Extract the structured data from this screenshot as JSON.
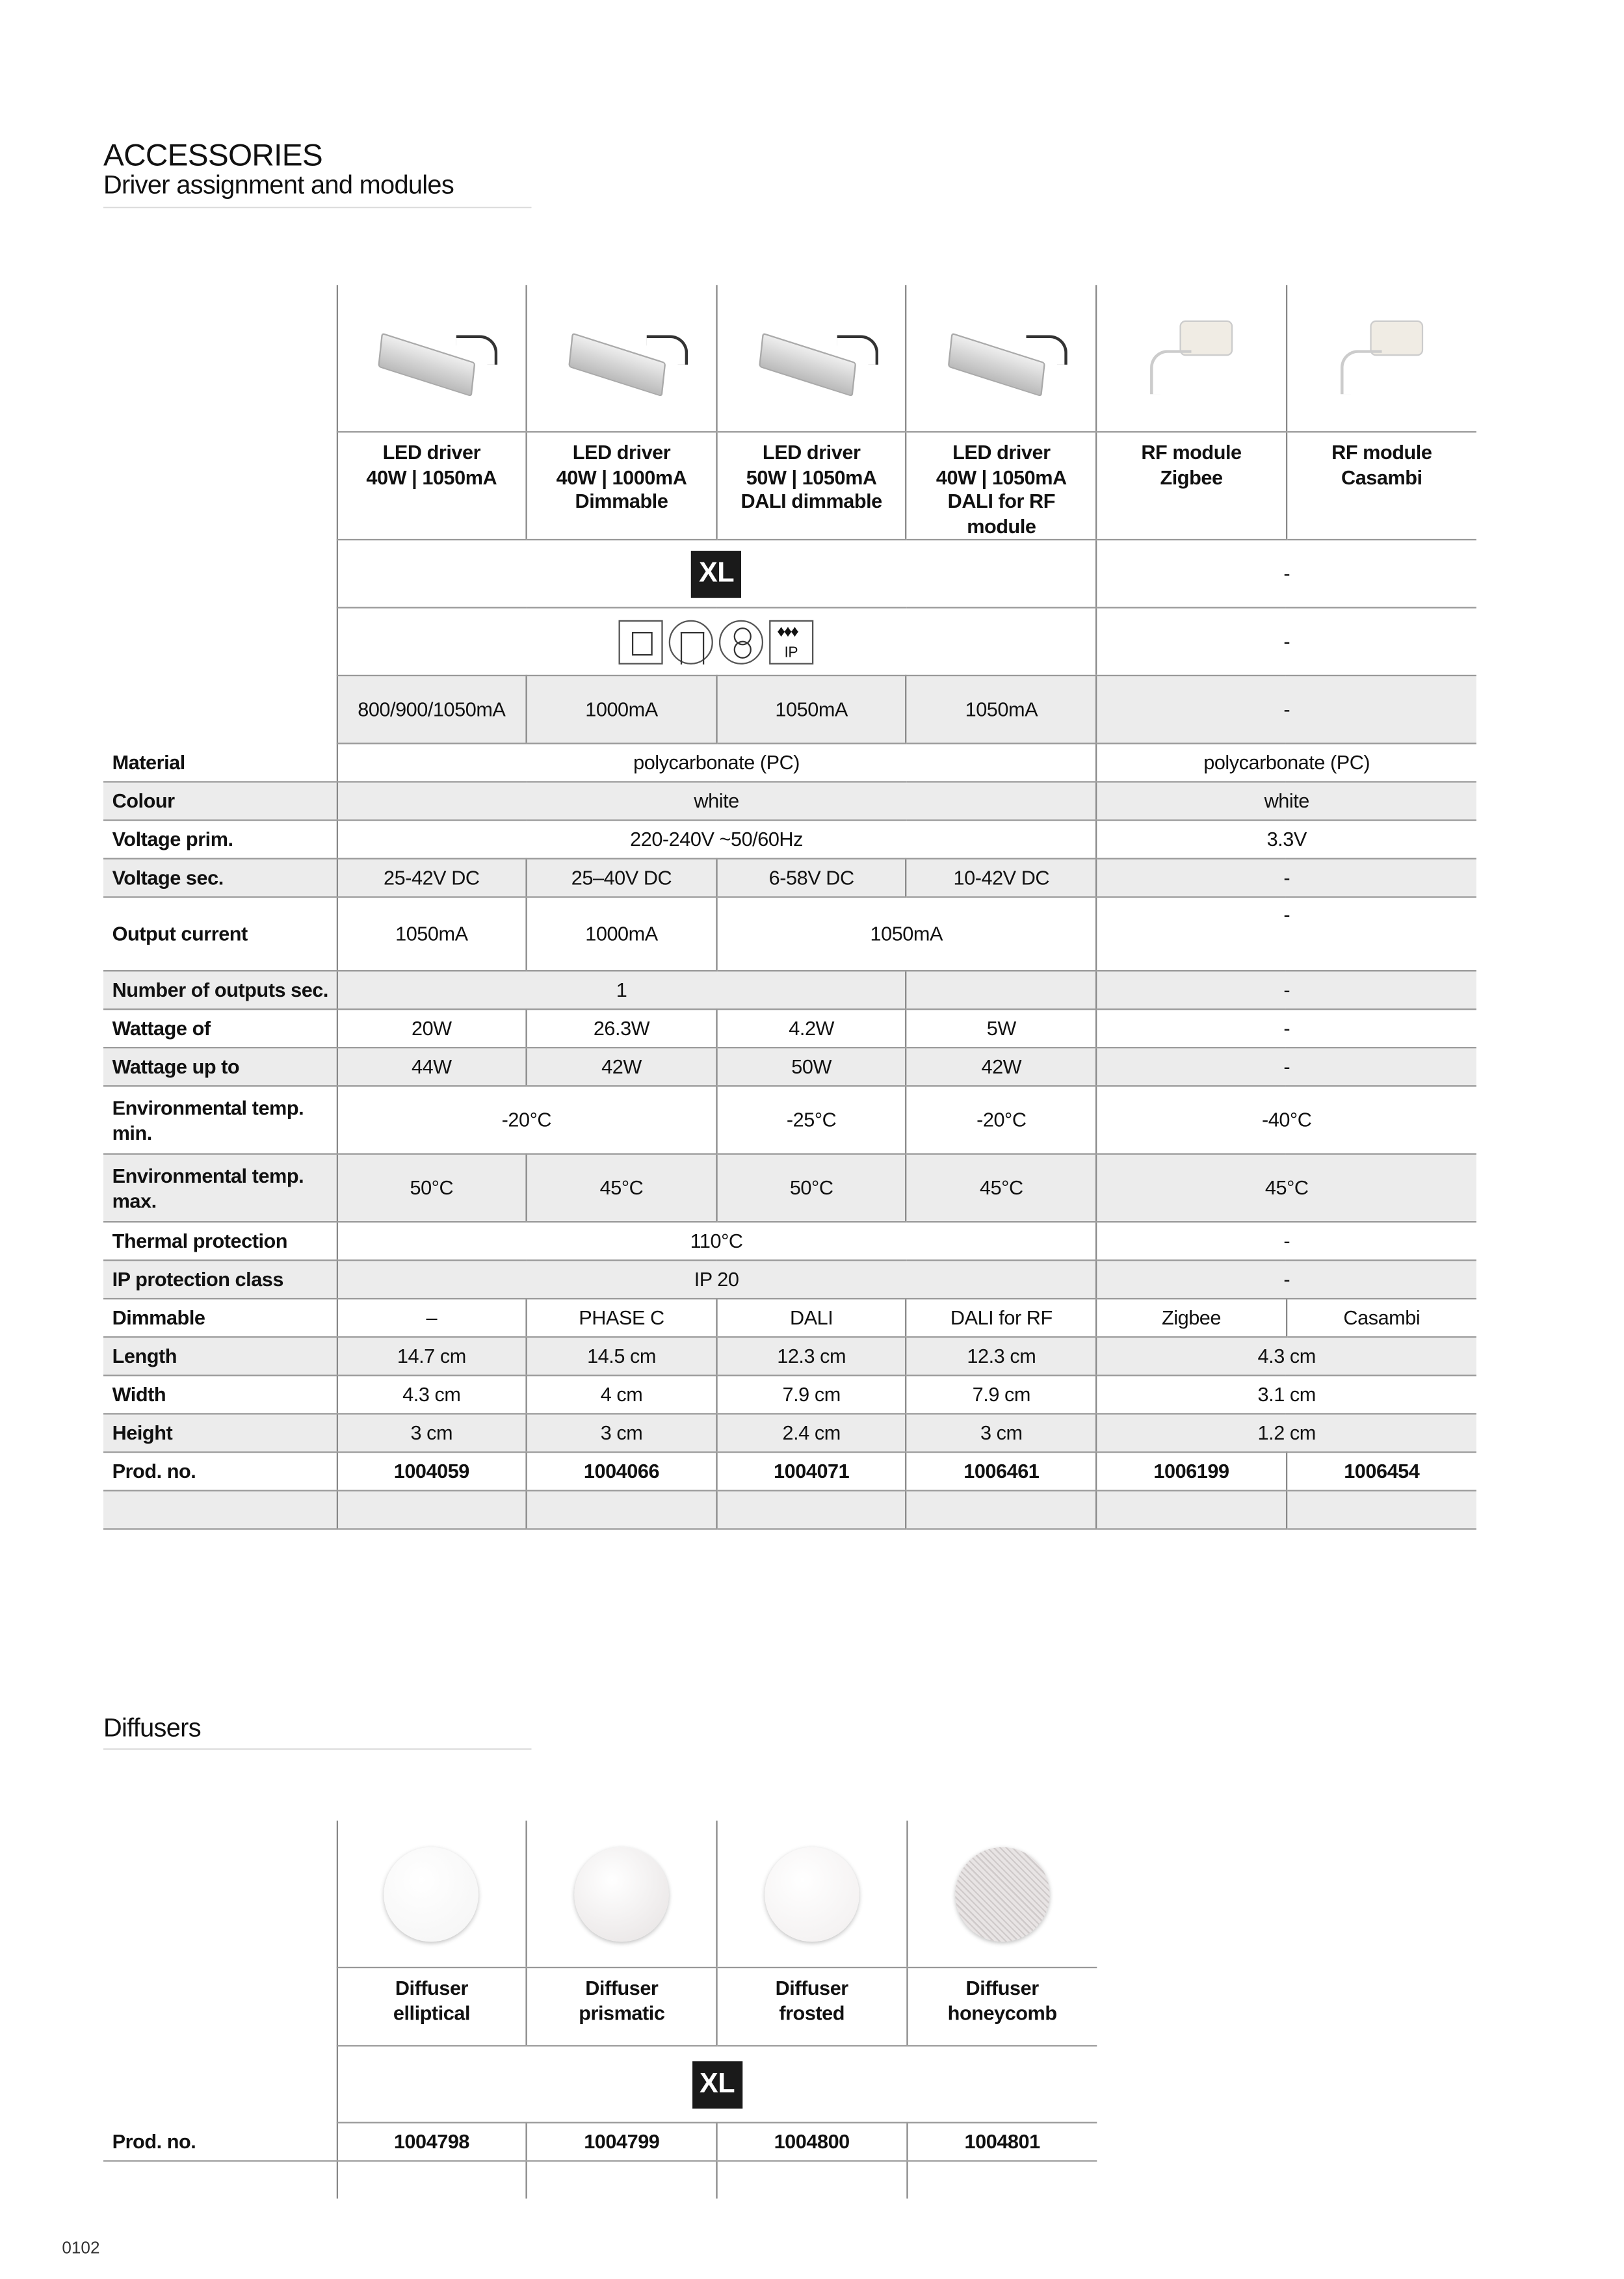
{
  "header": {
    "title": "ACCESSORIES",
    "subtitle": "Driver assignment and modules"
  },
  "drivers": {
    "products": [
      {
        "name1": "LED driver",
        "name2": "40W | 1050mA",
        "name3": "",
        "image": "led-driver"
      },
      {
        "name1": "LED driver",
        "name2": "40W | 1000mA",
        "name3": "Dimmable",
        "image": "led-driver"
      },
      {
        "name1": "LED driver",
        "name2": "50W | 1050mA",
        "name3": "DALI dimmable",
        "image": "led-driver"
      },
      {
        "name1": "LED driver",
        "name2": "40W | 1050mA",
        "name3": "DALI for RF module",
        "image": "led-driver"
      },
      {
        "name1": "RF module",
        "name2": "Zigbee",
        "name3": "",
        "image": "rf-module"
      },
      {
        "name1": "RF module",
        "name2": "Casambi",
        "name3": "",
        "image": "rf-module"
      }
    ],
    "xl_badge": "XL",
    "dash": "-",
    "icon_names": [
      "protection-class-icon",
      "switch-mode-icon",
      "transformer-icon",
      "ip-drip-icon"
    ],
    "ip_label": "IP",
    "current_row": [
      {
        "t": "800/900/1050mA",
        "s": 1
      },
      {
        "t": "1000mA",
        "s": 1
      },
      {
        "t": "1050mA",
        "s": 1
      },
      {
        "t": "1050mA",
        "s": 1
      },
      {
        "t": "-",
        "s": 2
      }
    ],
    "rows": [
      {
        "label": "Material",
        "cells": [
          {
            "t": "polycarbonate (PC)",
            "s": 4
          },
          {
            "t": "polycarbonate (PC)",
            "s": 2
          }
        ]
      },
      {
        "label": "Colour",
        "cells": [
          {
            "t": "white",
            "s": 4
          },
          {
            "t": "white",
            "s": 2
          }
        ]
      },
      {
        "label": "Voltage prim.",
        "cells": [
          {
            "t": "220-240V ~50/60Hz",
            "s": 4
          },
          {
            "t": "3.3V",
            "s": 2
          }
        ]
      },
      {
        "label": "Voltage sec.",
        "cells": [
          {
            "t": "25-42V DC",
            "s": 1
          },
          {
            "t": "25–40V DC",
            "s": 1
          },
          {
            "t": "6-58V DC",
            "s": 1
          },
          {
            "t": "10-42V DC",
            "s": 1
          },
          {
            "t": "-",
            "s": 2
          }
        ]
      },
      {
        "label": "Output current",
        "tall": true,
        "cells": [
          {
            "t": "1050mA",
            "s": 1
          },
          {
            "t": "1000mA",
            "s": 1
          },
          {
            "t": "1050mA",
            "s": 2
          },
          {
            "t": "-",
            "s": 2,
            "top": true
          }
        ]
      },
      {
        "label": "Number of outputs sec.",
        "cells": [
          {
            "t": "1",
            "s": 3
          },
          {
            "t": "",
            "s": 1
          },
          {
            "t": "-",
            "s": 2
          }
        ]
      },
      {
        "label": "Wattage of",
        "cells": [
          {
            "t": "20W",
            "s": 1
          },
          {
            "t": "26.3W",
            "s": 1
          },
          {
            "t": "4.2W",
            "s": 1
          },
          {
            "t": "5W",
            "s": 1
          },
          {
            "t": "-",
            "s": 2
          }
        ]
      },
      {
        "label": "Wattage up to",
        "cells": [
          {
            "t": "44W",
            "s": 1
          },
          {
            "t": "42W",
            "s": 1
          },
          {
            "t": "50W",
            "s": 1
          },
          {
            "t": "42W",
            "s": 1
          },
          {
            "t": "-",
            "s": 2
          }
        ]
      },
      {
        "label": "Environmental temp. min.",
        "tall": true,
        "cells": [
          {
            "t": "-20°C",
            "s": 2
          },
          {
            "t": "-25°C",
            "s": 1
          },
          {
            "t": "-20°C",
            "s": 1
          },
          {
            "t": "-40°C",
            "s": 2
          }
        ]
      },
      {
        "label": "Environmental temp. max.",
        "tall": true,
        "cells": [
          {
            "t": "50°C",
            "s": 1
          },
          {
            "t": "45°C",
            "s": 1
          },
          {
            "t": "50°C",
            "s": 1
          },
          {
            "t": "45°C",
            "s": 1
          },
          {
            "t": "45°C",
            "s": 2
          }
        ]
      },
      {
        "label": "Thermal protection",
        "cells": [
          {
            "t": "110°C",
            "s": 4
          },
          {
            "t": "-",
            "s": 2
          }
        ]
      },
      {
        "label": "IP protection class",
        "cells": [
          {
            "t": "IP 20",
            "s": 4
          },
          {
            "t": "-",
            "s": 2
          }
        ]
      },
      {
        "label": "Dimmable",
        "cells": [
          {
            "t": "–",
            "s": 1
          },
          {
            "t": "PHASE C",
            "s": 1
          },
          {
            "t": "DALI",
            "s": 1
          },
          {
            "t": "DALI for RF",
            "s": 1
          },
          {
            "t": "Zigbee",
            "s": 1
          },
          {
            "t": "Casambi",
            "s": 1
          }
        ]
      },
      {
        "label": "Length",
        "cells": [
          {
            "t": "14.7 cm",
            "s": 1
          },
          {
            "t": "14.5 cm",
            "s": 1
          },
          {
            "t": "12.3 cm",
            "s": 1
          },
          {
            "t": "12.3 cm",
            "s": 1
          },
          {
            "t": "4.3 cm",
            "s": 2
          }
        ]
      },
      {
        "label": "Width",
        "cells": [
          {
            "t": "4.3 cm",
            "s": 1
          },
          {
            "t": "4 cm",
            "s": 1
          },
          {
            "t": "7.9 cm",
            "s": 1
          },
          {
            "t": "7.9 cm",
            "s": 1
          },
          {
            "t": "3.1 cm",
            "s": 2
          }
        ]
      },
      {
        "label": "Height",
        "cells": [
          {
            "t": "3 cm",
            "s": 1
          },
          {
            "t": "3 cm",
            "s": 1
          },
          {
            "t": "2.4 cm",
            "s": 1
          },
          {
            "t": "3 cm",
            "s": 1
          },
          {
            "t": "1.2 cm",
            "s": 2
          }
        ]
      },
      {
        "label": "Prod. no.",
        "prod": true,
        "cells": [
          {
            "t": "1004059",
            "s": 1
          },
          {
            "t": "1004066",
            "s": 1
          },
          {
            "t": "1004071",
            "s": 1
          },
          {
            "t": "1006461",
            "s": 1
          },
          {
            "t": "1006199",
            "s": 1
          },
          {
            "t": "1006454",
            "s": 1
          }
        ]
      },
      {
        "label": "",
        "cells": [
          {
            "t": "",
            "s": 1
          },
          {
            "t": "",
            "s": 1
          },
          {
            "t": "",
            "s": 1
          },
          {
            "t": "",
            "s": 1
          },
          {
            "t": "",
            "s": 1
          },
          {
            "t": "",
            "s": 1
          }
        ]
      }
    ]
  },
  "diffusers": {
    "title": "Diffusers",
    "products": [
      {
        "name1": "Diffuser",
        "name2": "elliptical",
        "color": "#f4f4f4"
      },
      {
        "name1": "Diffuser",
        "name2": "prismatic",
        "color": "#e6e2e2"
      },
      {
        "name1": "Diffuser",
        "name2": "frosted",
        "color": "#f1eeee"
      },
      {
        "name1": "Diffuser",
        "name2": "honeycomb",
        "color": "#d8d4d4"
      }
    ],
    "xl_badge": "XL",
    "prod_label": "Prod. no.",
    "prod_numbers": [
      "1004798",
      "1004799",
      "1004800",
      "1004801"
    ]
  },
  "page_number": "0102"
}
